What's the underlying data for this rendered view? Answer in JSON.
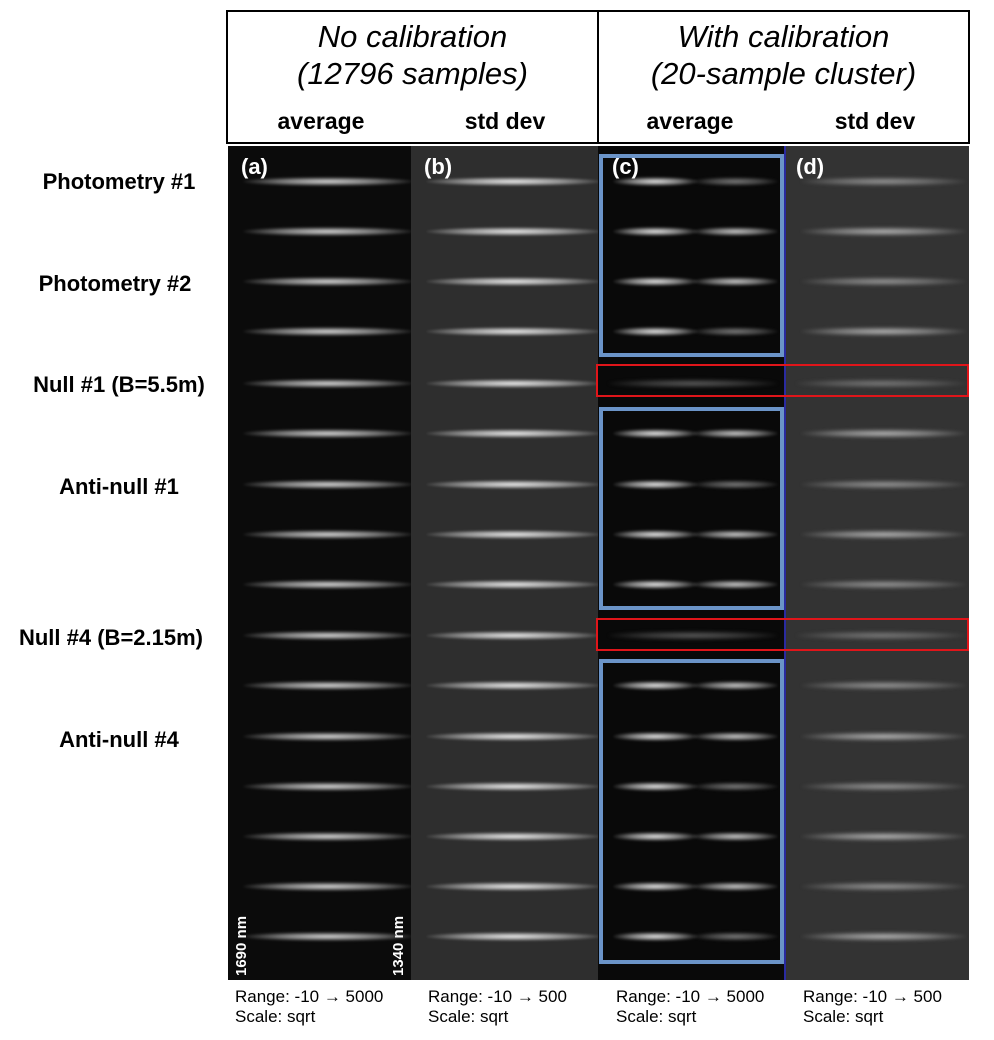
{
  "header": {
    "left": {
      "line1": "No calibration",
      "line2": "(12796 samples)"
    },
    "right": {
      "line1": "With calibration",
      "line2": "(20-sample cluster)"
    }
  },
  "columns": [
    "average",
    "std dev",
    "average",
    "std dev"
  ],
  "rows": {
    "photometry1": "Photometry #1",
    "photometry2": "Photometry #2",
    "null1": "Null #1 (B=5.5m)",
    "antinull1": "Anti-null #1",
    "null4": "Null #4 (B=2.15m)",
    "antinull4": "Anti-null #4"
  },
  "panels": [
    "(a)",
    "(b)",
    "(c)",
    "(d)"
  ],
  "wavelength": {
    "left": "1690 nm",
    "right": "1340 nm"
  },
  "footers": [
    {
      "range": "Range: -10 → 5000",
      "scale": "Scale: sqrt"
    },
    {
      "range": "Range: -10 → 500",
      "scale": "Scale: sqrt"
    },
    {
      "range": "Range: -10 → 5000",
      "scale": "Scale: sqrt"
    },
    {
      "range": "Range: -10 → 500",
      "scale": "Scale: sqrt"
    }
  ],
  "colors": {
    "blue_box": "#6b94c8",
    "red_box": "#e0151a"
  }
}
